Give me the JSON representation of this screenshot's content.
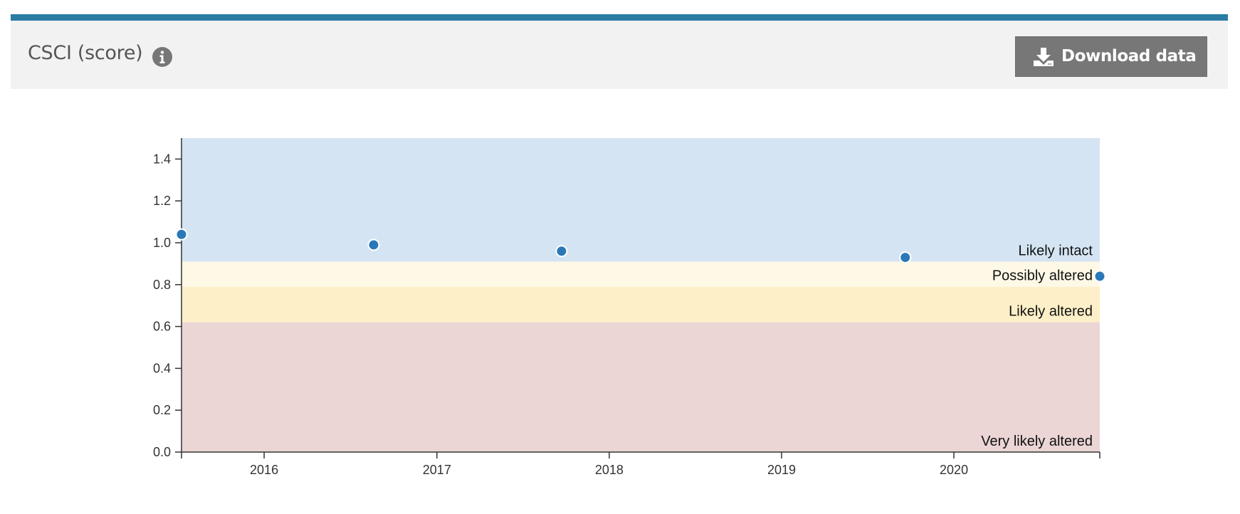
{
  "panel": {
    "title": "CSCI (score)",
    "download_label": "Download data",
    "accent_color": "#2a7ca3",
    "header_bg": "#f3f2f2",
    "button_bg": "#777777"
  },
  "chart_data": {
    "type": "scatter",
    "title": "",
    "xlabel": "",
    "ylabel": "",
    "x_ticks": [
      "2016",
      "2017",
      "2018",
      "2019",
      "2020"
    ],
    "x_range": [
      "2015-07-10",
      "2020-11-05"
    ],
    "ylim": [
      0,
      1.5
    ],
    "y_ticks": [
      0.0,
      0.2,
      0.4,
      0.6,
      0.8,
      1.0,
      1.2,
      1.4
    ],
    "points": [
      {
        "date": "2015-07-10",
        "value": 1.04
      },
      {
        "date": "2016-08-20",
        "value": 0.99
      },
      {
        "date": "2017-09-22",
        "value": 0.96
      },
      {
        "date": "2019-09-20",
        "value": 0.93
      },
      {
        "date": "2020-11-05",
        "value": 0.84
      }
    ],
    "point_color": "#2a78b8",
    "bands": [
      {
        "label": "Likely intact",
        "min": 0.91,
        "max": 1.5,
        "color": "#d4e4f3"
      },
      {
        "label": "Possibly altered",
        "min": 0.79,
        "max": 0.91,
        "color": "#fef8e6"
      },
      {
        "label": "Likely altered",
        "min": 0.62,
        "max": 0.79,
        "color": "#fdefc7"
      },
      {
        "label": "Very likely altered",
        "min": 0.0,
        "max": 0.62,
        "color": "#ebd5d5"
      }
    ],
    "grid": false,
    "legend": "none"
  }
}
